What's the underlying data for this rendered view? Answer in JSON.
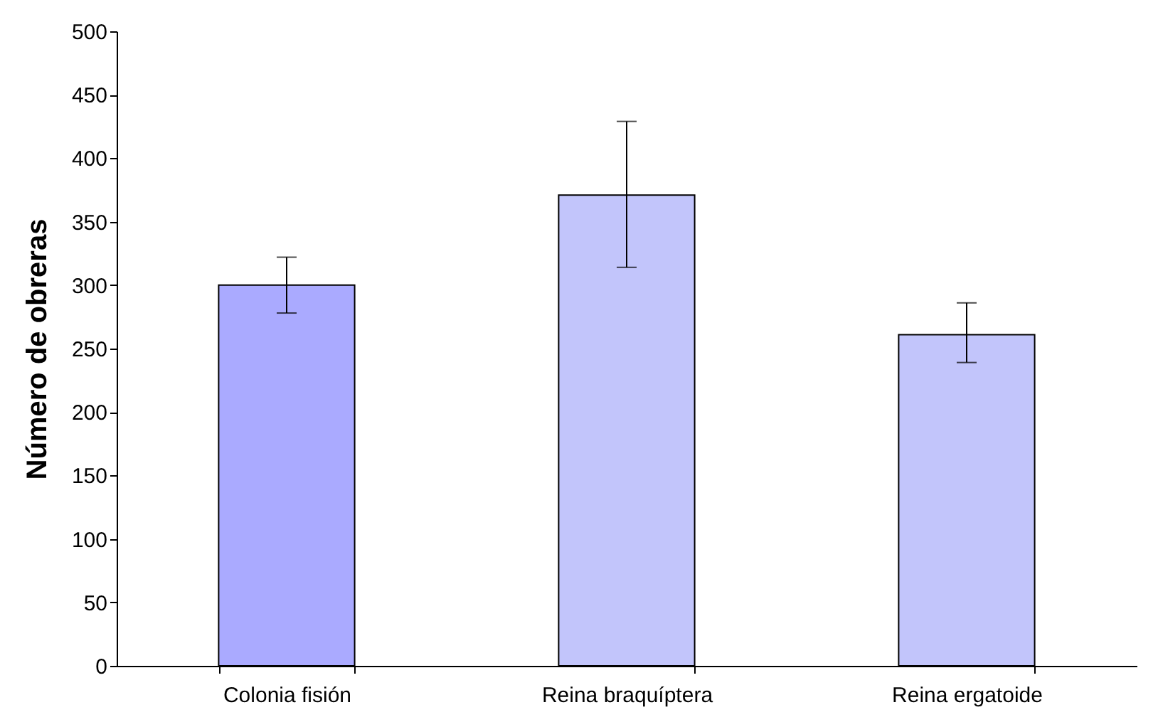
{
  "chart_data": {
    "type": "bar",
    "ylabel": "Número de obreras",
    "categories": [
      "Colonia fisión",
      "Reina braquíptera",
      "Reina ergatoide"
    ],
    "values": [
      300,
      371,
      261
    ],
    "errors": [
      [
        278,
        322
      ],
      [
        314,
        429
      ],
      [
        239,
        286
      ]
    ],
    "colors": [
      "#aaaaff",
      "#c2c5fb",
      "#c2c5fb"
    ],
    "ylim": [
      0,
      500
    ],
    "yticks": [
      0,
      50,
      100,
      150,
      200,
      250,
      300,
      350,
      400,
      450,
      500
    ],
    "grid": false
  }
}
